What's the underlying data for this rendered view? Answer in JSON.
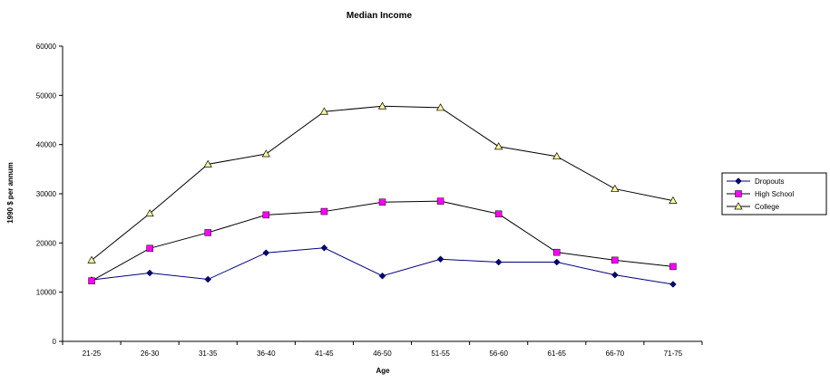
{
  "chart_data": {
    "type": "line",
    "title": "Median Income",
    "xlabel": "Age",
    "ylabel": "1990 $ per annum",
    "categories": [
      "21-25",
      "26-30",
      "31-35",
      "36-40",
      "41-45",
      "46-50",
      "51-55",
      "56-60",
      "61-65",
      "66-70",
      "71-75"
    ],
    "ylim": [
      0,
      60000
    ],
    "yticks": [
      "0",
      "10000",
      "20000",
      "30000",
      "40000",
      "50000",
      "60000"
    ],
    "grid": false,
    "legend_position": "right",
    "series": [
      {
        "name": "Dropouts",
        "color": "#000080",
        "marker": "diamond",
        "values": [
          12500,
          13900,
          12600,
          18000,
          19000,
          13300,
          16700,
          16100,
          16100,
          13500,
          11600
        ]
      },
      {
        "name": "High School",
        "color": "#ff00ff",
        "marker": "square",
        "values": [
          12300,
          18900,
          22100,
          25700,
          26400,
          28300,
          28500,
          25900,
          18100,
          16500,
          15200
        ]
      },
      {
        "name": "College",
        "color": "#ffff99",
        "marker": "triangle",
        "values": [
          16500,
          26000,
          36000,
          38100,
          46700,
          47800,
          47500,
          39600,
          37600,
          31000,
          28600
        ]
      }
    ]
  }
}
